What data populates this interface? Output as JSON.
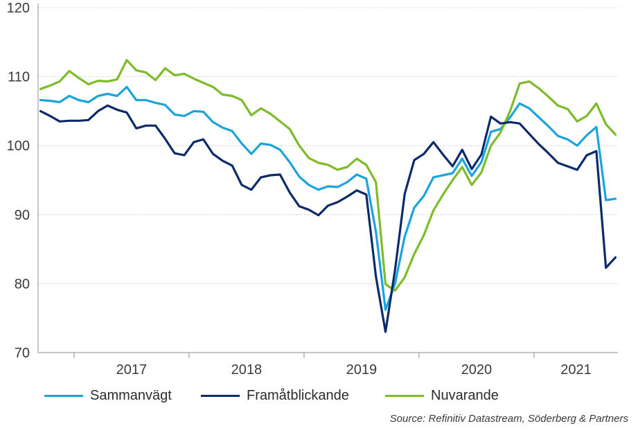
{
  "chart_data": {
    "type": "line",
    "title": "",
    "xlabel": "",
    "ylabel": "",
    "ylim": [
      70,
      120
    ],
    "yticks": [
      70,
      80,
      90,
      100,
      110,
      120
    ],
    "year_labels": [
      "2017",
      "2018",
      "2019",
      "2020",
      "2021"
    ],
    "grid": true,
    "legend_position": "bottom",
    "source": "Source: Refinitiv Datastream, Söderberg & Partners",
    "x_start": "2016-09",
    "x_end": "2022-03",
    "series": [
      {
        "name": "Sammanvägt",
        "color": "#1aa3dd",
        "values": [
          106.6,
          106.5,
          106.3,
          107.2,
          106.6,
          106.3,
          107.2,
          107.5,
          107.2,
          108.5,
          106.6,
          106.6,
          106.2,
          105.9,
          104.5,
          104.3,
          105.0,
          104.9,
          103.4,
          102.6,
          102.1,
          100.3,
          98.8,
          100.3,
          100.1,
          99.4,
          97.6,
          95.5,
          94.3,
          93.6,
          94.1,
          94.0,
          94.7,
          95.8,
          95.2,
          87.5,
          76.2,
          80.0,
          86.8,
          91.0,
          92.7,
          95.4,
          95.7,
          96.0,
          98.1,
          95.6,
          97.6,
          102.0,
          102.4,
          104.1,
          106.1,
          105.4,
          104.1,
          102.8,
          101.4,
          100.9,
          100.0,
          101.5,
          102.7,
          92.1,
          92.3
        ]
      },
      {
        "name": "Framåtblickande",
        "color": "#0b2a6b",
        "values": [
          105.0,
          104.3,
          103.5,
          103.6,
          103.6,
          103.7,
          105.0,
          105.8,
          105.2,
          104.8,
          102.5,
          102.9,
          102.9,
          101.0,
          98.9,
          98.6,
          100.5,
          100.9,
          98.8,
          97.8,
          97.1,
          94.3,
          93.6,
          95.4,
          95.7,
          95.8,
          93.2,
          91.2,
          90.7,
          89.9,
          91.3,
          91.8,
          92.6,
          93.5,
          92.9,
          81.0,
          73.0,
          82.0,
          93.0,
          97.9,
          98.8,
          100.5,
          98.7,
          97.0,
          99.4,
          96.6,
          98.7,
          104.2,
          103.2,
          103.4,
          103.2,
          101.7,
          100.2,
          98.9,
          97.5,
          97.0,
          96.5,
          98.6,
          99.2,
          82.3,
          83.8
        ]
      },
      {
        "name": "Nuvarande",
        "color": "#7dbb2a",
        "values": [
          108.2,
          108.7,
          109.3,
          110.8,
          109.8,
          108.9,
          109.4,
          109.3,
          109.6,
          112.4,
          110.9,
          110.6,
          109.5,
          111.2,
          110.2,
          110.4,
          109.7,
          109.1,
          108.5,
          107.4,
          107.2,
          106.6,
          104.4,
          105.4,
          104.6,
          103.5,
          102.4,
          100.0,
          98.2,
          97.5,
          97.2,
          96.5,
          96.9,
          98.1,
          97.2,
          94.7,
          79.9,
          79.0,
          80.9,
          84.3,
          87.0,
          90.6,
          92.9,
          95.0,
          96.9,
          94.3,
          96.1,
          100.0,
          101.9,
          105.0,
          109.0,
          109.3,
          108.3,
          107.1,
          105.8,
          105.3,
          103.5,
          104.3,
          106.1,
          103.1,
          101.6
        ]
      }
    ]
  }
}
